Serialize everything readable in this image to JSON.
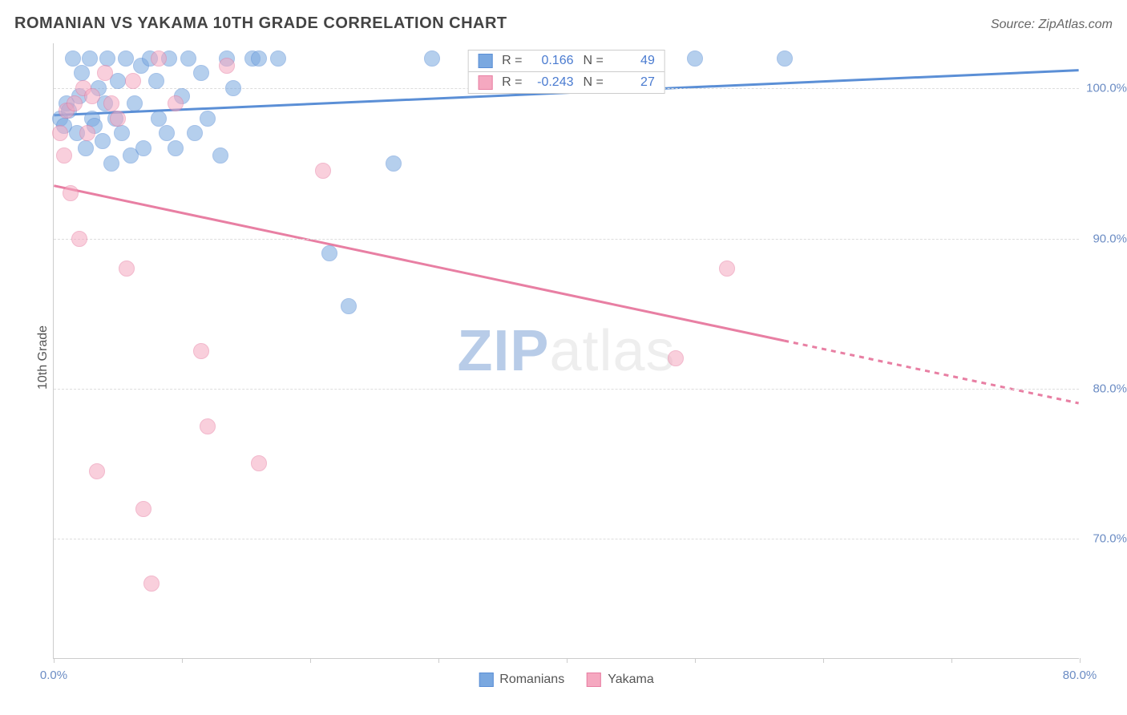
{
  "title": "ROMANIAN VS YAKAMA 10TH GRADE CORRELATION CHART",
  "source": "Source: ZipAtlas.com",
  "ylabel": "10th Grade",
  "watermark": {
    "bold": "ZIP",
    "rest": "atlas"
  },
  "chart": {
    "type": "scatter",
    "xlim": [
      0,
      80
    ],
    "ylim": [
      62,
      103
    ],
    "xticks": [
      0,
      10,
      20,
      30,
      40,
      50,
      60,
      70,
      80
    ],
    "xtick_labels": {
      "0": "0.0%",
      "80": "80.0%"
    },
    "yticks": [
      70,
      80,
      90,
      100
    ],
    "ytick_labels": {
      "70": "70.0%",
      "80": "80.0%",
      "90": "90.0%",
      "100": "100.0%"
    },
    "grid_color": "#dddddd",
    "axis_color": "#cccccc",
    "background_color": "#ffffff",
    "marker_radius": 10,
    "marker_opacity": 0.55,
    "series": [
      {
        "name": "Romanians",
        "color": "#7aa8e0",
        "stroke": "#5b8fd6",
        "r_value": "0.166",
        "n_value": "49",
        "trend": {
          "x1": 0,
          "y1": 98.2,
          "x2": 80,
          "y2": 101.2,
          "dash_from_x": null
        },
        "points": [
          [
            0.5,
            98.0
          ],
          [
            0.8,
            97.5
          ],
          [
            1.0,
            99.0
          ],
          [
            1.2,
            98.5
          ],
          [
            1.5,
            102.0
          ],
          [
            1.8,
            97.0
          ],
          [
            2.0,
            99.5
          ],
          [
            2.2,
            101.0
          ],
          [
            2.5,
            96.0
          ],
          [
            2.8,
            102.0
          ],
          [
            3.0,
            98.0
          ],
          [
            3.2,
            97.5
          ],
          [
            3.5,
            100.0
          ],
          [
            3.8,
            96.5
          ],
          [
            4.0,
            99.0
          ],
          [
            4.2,
            102.0
          ],
          [
            4.5,
            95.0
          ],
          [
            4.8,
            98.0
          ],
          [
            5.0,
            100.5
          ],
          [
            5.3,
            97.0
          ],
          [
            5.6,
            102.0
          ],
          [
            6.0,
            95.5
          ],
          [
            6.3,
            99.0
          ],
          [
            6.8,
            101.5
          ],
          [
            7.0,
            96.0
          ],
          [
            7.5,
            102.0
          ],
          [
            8.0,
            100.5
          ],
          [
            8.2,
            98.0
          ],
          [
            8.8,
            97.0
          ],
          [
            9.0,
            102.0
          ],
          [
            9.5,
            96.0
          ],
          [
            10.0,
            99.5
          ],
          [
            10.5,
            102.0
          ],
          [
            11.0,
            97.0
          ],
          [
            11.5,
            101.0
          ],
          [
            12.0,
            98.0
          ],
          [
            13.0,
            95.5
          ],
          [
            13.5,
            102.0
          ],
          [
            14.0,
            100.0
          ],
          [
            15.5,
            102.0
          ],
          [
            16.0,
            102.0
          ],
          [
            17.5,
            102.0
          ],
          [
            21.5,
            89.0
          ],
          [
            23.0,
            85.5
          ],
          [
            26.5,
            95.0
          ],
          [
            29.5,
            102.0
          ],
          [
            50.0,
            102.0
          ],
          [
            57.0,
            102.0
          ]
        ]
      },
      {
        "name": "Yakama",
        "color": "#f5a8c0",
        "stroke": "#e87fa3",
        "r_value": "-0.243",
        "n_value": "27",
        "trend": {
          "x1": 0,
          "y1": 93.5,
          "x2": 80,
          "y2": 79.0,
          "dash_from_x": 57
        },
        "points": [
          [
            0.5,
            97.0
          ],
          [
            0.8,
            95.5
          ],
          [
            1.0,
            98.5
          ],
          [
            1.3,
            93.0
          ],
          [
            1.6,
            99.0
          ],
          [
            2.0,
            90.0
          ],
          [
            2.3,
            100.0
          ],
          [
            2.6,
            97.0
          ],
          [
            3.0,
            99.5
          ],
          [
            3.4,
            74.5
          ],
          [
            4.0,
            101.0
          ],
          [
            4.5,
            99.0
          ],
          [
            5.0,
            98.0
          ],
          [
            5.7,
            88.0
          ],
          [
            6.2,
            100.5
          ],
          [
            7.0,
            72.0
          ],
          [
            7.6,
            67.0
          ],
          [
            8.2,
            102.0
          ],
          [
            9.5,
            99.0
          ],
          [
            11.5,
            82.5
          ],
          [
            12.0,
            77.5
          ],
          [
            13.5,
            101.5
          ],
          [
            16.0,
            75.0
          ],
          [
            21.0,
            94.5
          ],
          [
            48.5,
            82.0
          ],
          [
            52.5,
            88.0
          ]
        ]
      }
    ]
  },
  "legend": {
    "series1_label": "Romanians",
    "series2_label": "Yakama"
  },
  "stats_labels": {
    "r": "R =",
    "n": "N ="
  }
}
